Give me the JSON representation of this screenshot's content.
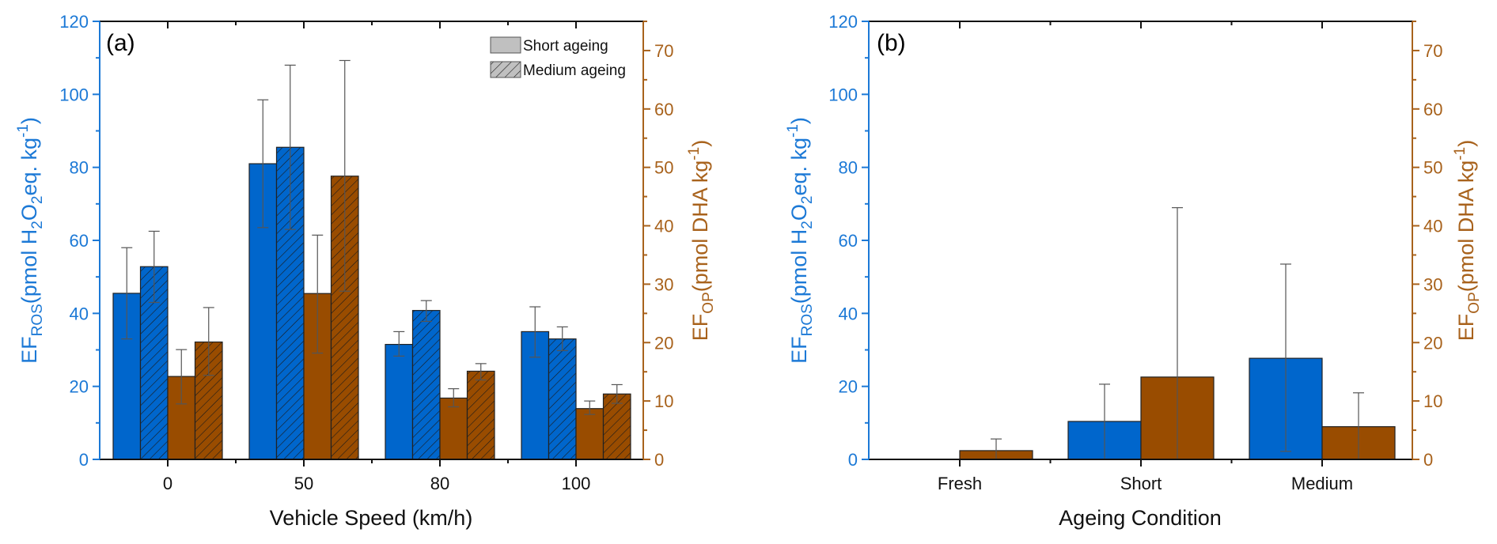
{
  "colors": {
    "ros": "#0066CC",
    "op": "#994C00",
    "ros_axis": "#1C79D6",
    "op_axis": "#A8621C",
    "error": "#555555",
    "legend_fill": "#C0C0C0"
  },
  "chart_data": [
    {
      "type": "bar",
      "panel_label": "(a)",
      "xlabel": "Vehicle Speed (km/h)",
      "ylabel_left": {
        "main": "EF",
        "sub": "ROS",
        "rest1": "(pmol H",
        "sub2": "2",
        "rest2": "O",
        "sub3": "2",
        "rest3": "eq. kg",
        "sup": "-1",
        "end": ")"
      },
      "ylabel_right": {
        "main": "EF",
        "sub": "OP",
        "rest": "(pmol DHA kg",
        "sup": "-1",
        "end": ")"
      },
      "ylim_left": [
        0,
        120
      ],
      "ylim_right": [
        0,
        75
      ],
      "yticks_left": [
        0,
        20,
        40,
        60,
        80,
        100,
        120
      ],
      "yticks_right": [
        0,
        10,
        20,
        30,
        40,
        50,
        60,
        70
      ],
      "categories": [
        "0",
        "50",
        "80",
        "100"
      ],
      "legend": {
        "position": "top-right",
        "entries": [
          "Short ageing",
          "Medium ageing"
        ]
      },
      "grid": false,
      "series": [
        {
          "name": "EF_ROS Short ageing",
          "axis": "left",
          "pattern": "solid",
          "color": "ros",
          "values": [
            45.5,
            81.0,
            31.5,
            35.0
          ],
          "err_low": [
            33.0,
            63.5,
            28.3,
            28.0
          ],
          "err_high": [
            58.0,
            98.5,
            35.0,
            41.8
          ]
        },
        {
          "name": "EF_ROS Medium ageing",
          "axis": "left",
          "pattern": "hatch",
          "color": "ros",
          "values": [
            52.8,
            85.5,
            40.8,
            33.0
          ],
          "err_low": [
            43.0,
            63.0,
            37.8,
            29.8
          ],
          "err_high": [
            62.5,
            108.0,
            43.5,
            36.3
          ]
        },
        {
          "name": "EF_OP Short ageing",
          "axis": "right",
          "pattern": "solid",
          "color": "op",
          "values": [
            14.2,
            28.4,
            10.5,
            8.7
          ],
          "err_low": [
            9.5,
            18.2,
            9.0,
            7.7
          ],
          "err_high": [
            18.8,
            38.4,
            12.1,
            10.0
          ]
        },
        {
          "name": "EF_OP Medium ageing",
          "axis": "right",
          "pattern": "hatch",
          "color": "op",
          "values": [
            20.1,
            48.5,
            15.1,
            11.2
          ],
          "err_low": [
            14.4,
            28.8,
            13.6,
            9.6
          ],
          "err_high": [
            26.0,
            68.3,
            16.4,
            12.8
          ]
        }
      ]
    },
    {
      "type": "bar",
      "panel_label": "(b)",
      "xlabel": "Ageing Condition",
      "ylabel_left": {
        "main": "EF",
        "sub": "ROS",
        "rest1": "(pmol H",
        "sub2": "2",
        "rest2": "O",
        "sub3": "2",
        "rest3": "eq. kg",
        "sup": "-1",
        "end": ")"
      },
      "ylabel_right": {
        "main": "EF",
        "sub": "OP",
        "rest": "(pmol DHA kg",
        "sup": "-1",
        "end": ")"
      },
      "ylim_left": [
        0,
        120
      ],
      "ylim_right": [
        0,
        75
      ],
      "yticks_left": [
        0,
        20,
        40,
        60,
        80,
        100,
        120
      ],
      "yticks_right": [
        0,
        10,
        20,
        30,
        40,
        50,
        60,
        70
      ],
      "categories": [
        "Fresh",
        "Short",
        "Medium"
      ],
      "grid": false,
      "series": [
        {
          "name": "EF_ROS",
          "axis": "left",
          "pattern": "solid",
          "color": "ros",
          "values": [
            0,
            10.4,
            27.7
          ],
          "err_low": [
            0,
            0,
            2.2
          ],
          "err_high": [
            0,
            20.6,
            53.5
          ]
        },
        {
          "name": "EF_OP",
          "axis": "right",
          "pattern": "solid",
          "color": "op",
          "values": [
            1.5,
            14.1,
            5.6
          ],
          "err_low": [
            0,
            0,
            0
          ],
          "err_high": [
            3.5,
            43.1,
            11.4
          ]
        }
      ]
    }
  ]
}
